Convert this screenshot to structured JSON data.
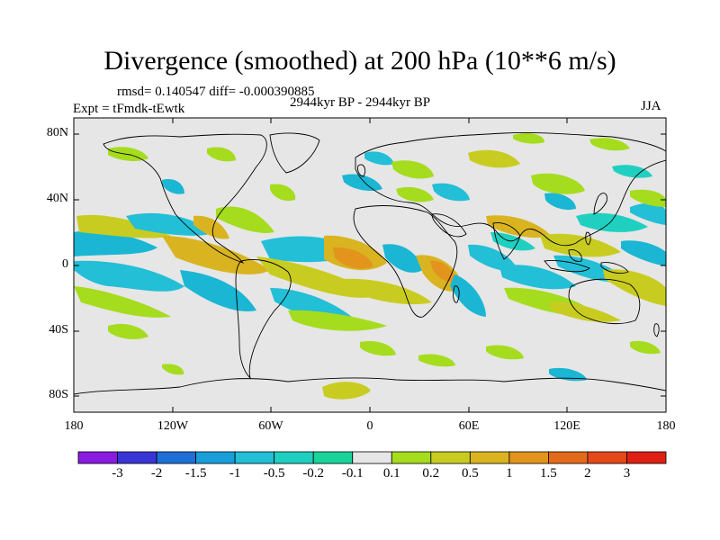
{
  "title": "Divergence (smoothed) at 200 hPa (10**6 m/s)",
  "stats": "rmsd= 0.140547  diff= -0.000390885",
  "expt": "Expt = tFmdk-tEwtk",
  "period": "2944kyr BP - 2944kyr BP",
  "season": "JJA",
  "lat_labels": [
    "80N",
    "40N",
    "0",
    "40S",
    "80S"
  ],
  "lon_labels": [
    "180",
    "120W",
    "60W",
    "0",
    "60E",
    "120E",
    "180"
  ],
  "colorbar": {
    "labels": [
      "-3",
      "-2",
      "-1.5",
      "-1",
      "-0.5",
      "-0.2",
      "-0.1",
      "0.1",
      "0.2",
      "0.5",
      "1",
      "1.5",
      "2",
      "3"
    ],
    "colors": [
      "#8a1be0",
      "#3a35d6",
      "#1e6fd8",
      "#1a9ed9",
      "#22bfd6",
      "#1fd0c0",
      "#1ad39b",
      "#e6e6e6",
      "#a5dc1e",
      "#c9cc20",
      "#d9b420",
      "#e2941d",
      "#e46a1b",
      "#e44919",
      "#e01f14"
    ]
  },
  "land_color": "#e6e6e6"
}
